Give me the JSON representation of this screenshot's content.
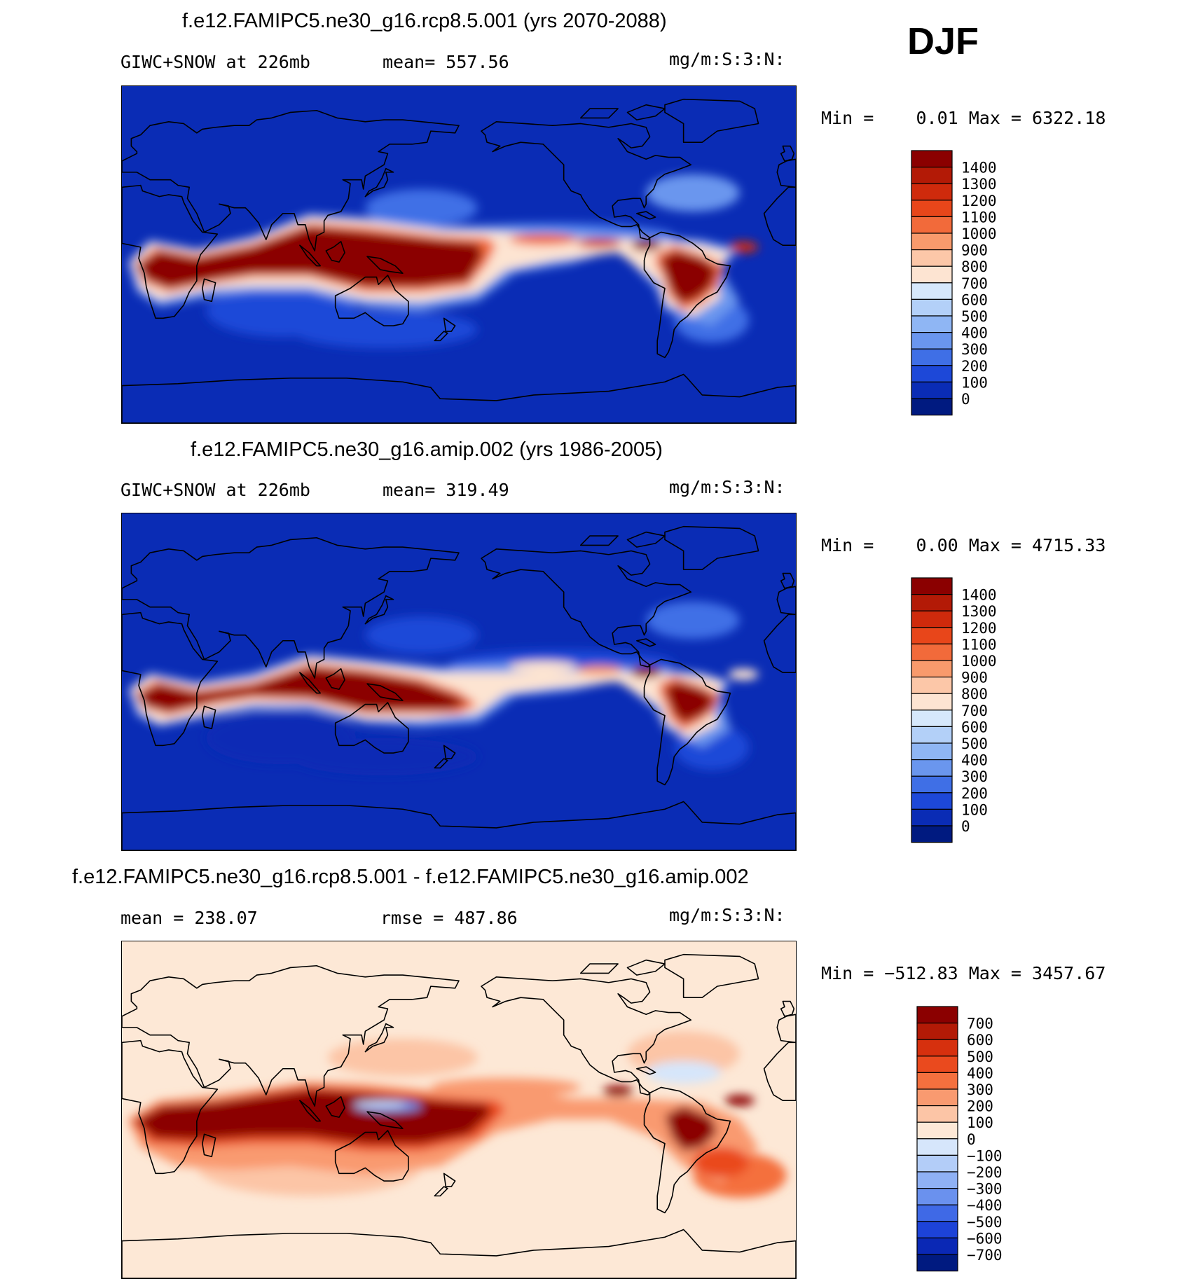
{
  "season_label": "DJF",
  "chart_data": [
    {
      "type": "heatmap",
      "title": "f.e12.FAMIPC5.ne30_g16.rcp8.5.001 (yrs 2070-2088)",
      "left_label": "GIWC+SNOW at 226mb",
      "center_label": "mean= 557.56",
      "units": "mg/m:S:3:N:",
      "min_max": "Min =    0.01 Max = 6322.18",
      "colorbar_levels": [
        "1400",
        "1300",
        "1200",
        "1100",
        "1000",
        "900",
        "800",
        "700",
        "600",
        "500",
        "400",
        "300",
        "200",
        "100",
        "0"
      ],
      "colorbar_colors": [
        "#8b0000",
        "#b31a06",
        "#cf2a0c",
        "#e8461a",
        "#f26a3a",
        "#f89a6c",
        "#fcc7a8",
        "#fde4d2",
        "#d6e8fb",
        "#b3d0f8",
        "#8fb6f4",
        "#6a96ee",
        "#3f6fe6",
        "#1d48d8",
        "#0a2cb5",
        "#001a80"
      ]
    },
    {
      "type": "heatmap",
      "title": "f.e12.FAMIPC5.ne30_g16.amip.002 (yrs 1986-2005)",
      "left_label": "GIWC+SNOW at 226mb",
      "center_label": "mean= 319.49",
      "units": "mg/m:S:3:N:",
      "min_max": "Min =    0.00 Max = 4715.33",
      "colorbar_levels": [
        "1400",
        "1300",
        "1200",
        "1100",
        "1000",
        "900",
        "800",
        "700",
        "600",
        "500",
        "400",
        "300",
        "200",
        "100",
        "0"
      ],
      "colorbar_colors": [
        "#8b0000",
        "#b31a06",
        "#cf2a0c",
        "#e8461a",
        "#f26a3a",
        "#f89a6c",
        "#fcc7a8",
        "#fde4d2",
        "#d6e8fb",
        "#b3d0f8",
        "#8fb6f4",
        "#6a96ee",
        "#3f6fe6",
        "#1d48d8",
        "#0a2cb5",
        "#001a80"
      ]
    },
    {
      "type": "heatmap",
      "title": "f.e12.FAMIPC5.ne30_g16.rcp8.5.001 - f.e12.FAMIPC5.ne30_g16.amip.002",
      "left_label": "mean = 238.07",
      "center_label": "rmse = 487.86",
      "units": "mg/m:S:3:N:",
      "min_max": "Min = −512.83 Max = 3457.67",
      "colorbar_levels": [
        "700",
        "600",
        "500",
        "400",
        "300",
        "200",
        "100",
        "0",
        "−100",
        "−200",
        "−300",
        "−400",
        "−500",
        "−600",
        "−700"
      ],
      "colorbar_colors": [
        "#8b0000",
        "#b31a06",
        "#d6300e",
        "#ea4a1e",
        "#f4703e",
        "#f99a70",
        "#fcc5a6",
        "#fde8d6",
        "#d6e6fb",
        "#b3cdf8",
        "#8fb1f4",
        "#6a91ee",
        "#3f69e6",
        "#1d43d8",
        "#0a28b5",
        "#001a80"
      ]
    }
  ]
}
